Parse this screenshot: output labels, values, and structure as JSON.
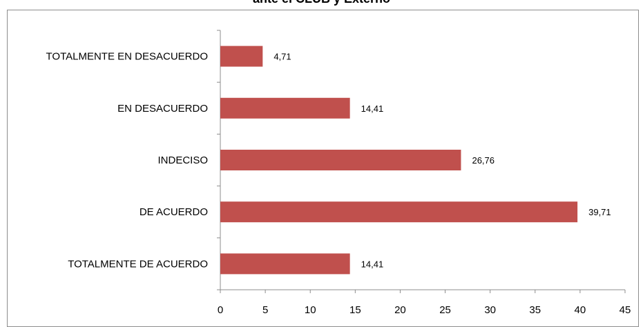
{
  "chart_data": {
    "type": "bar",
    "orientation": "horizontal",
    "title": "ante el CLUB y Externo",
    "xlabel": "",
    "ylabel": "",
    "categories": [
      "TOTALMENTE EN DESACUERDO",
      "EN DESACUERDO",
      "INDECISO",
      "DE ACUERDO",
      "TOTALMENTE DE ACUERDO"
    ],
    "values": [
      4.71,
      14.41,
      26.76,
      39.71,
      14.41
    ],
    "value_labels": [
      "4,71",
      "14,41",
      "26,76",
      "39,71",
      "14,41"
    ],
    "xlim": [
      0,
      45
    ],
    "xticks": [
      "0",
      "5",
      "10",
      "15",
      "20",
      "25",
      "30",
      "35",
      "40",
      "45"
    ],
    "grid": false,
    "legend": "none",
    "bar_color": "#c0504d"
  }
}
